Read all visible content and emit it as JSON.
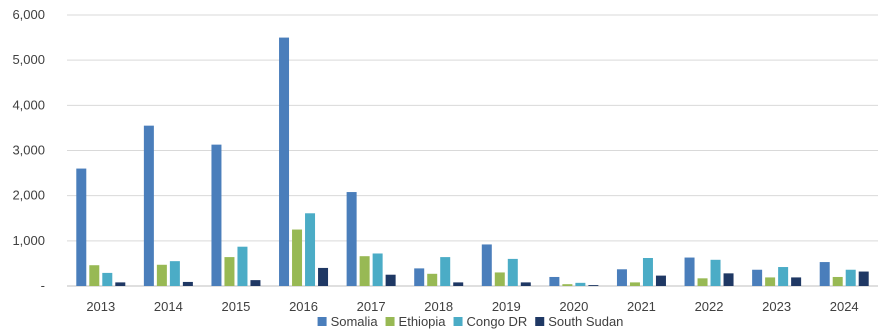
{
  "chart_data": {
    "type": "bar",
    "title": "",
    "xlabel": "",
    "ylabel": "",
    "ylim": [
      0,
      6000
    ],
    "y_ticks": [
      0,
      1000,
      2000,
      3000,
      4000,
      5000,
      6000
    ],
    "y_tick_labels": [
      "-",
      "1,000",
      "2,000",
      "3,000",
      "4,000",
      "5,000",
      "6,000"
    ],
    "grid": true,
    "legend_position": "bottom",
    "categories": [
      "2013",
      "2014",
      "2015",
      "2016",
      "2017",
      "2018",
      "2019",
      "2020",
      "2021",
      "2022",
      "2023",
      "2024"
    ],
    "series": [
      {
        "name": "Somalia",
        "color": "#4a7ebb",
        "values": [
          2600,
          3550,
          3130,
          5500,
          2080,
          390,
          920,
          200,
          370,
          630,
          360,
          530
        ]
      },
      {
        "name": "Ethiopia",
        "color": "#98b954",
        "values": [
          460,
          470,
          640,
          1250,
          660,
          270,
          300,
          40,
          80,
          170,
          190,
          200
        ]
      },
      {
        "name": "Congo DR",
        "color": "#4bacc6",
        "values": [
          290,
          550,
          870,
          1610,
          720,
          640,
          600,
          70,
          620,
          580,
          420,
          360
        ]
      },
      {
        "name": "South Sudan",
        "color": "#1f3864",
        "values": [
          80,
          90,
          130,
          400,
          250,
          80,
          80,
          20,
          230,
          280,
          190,
          320
        ]
      }
    ]
  }
}
